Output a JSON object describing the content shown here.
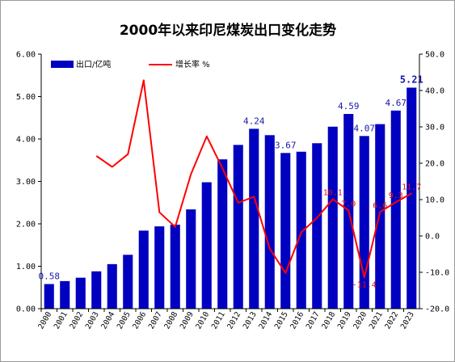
{
  "chart_data": {
    "type": "bar+line",
    "title": "2000年以来印尼煤炭出口变化走势",
    "categories": [
      "2000",
      "2001",
      "2002",
      "2003",
      "2004",
      "2005",
      "2006",
      "2007",
      "2008",
      "2009",
      "2010",
      "2011",
      "2012",
      "2013",
      "2014",
      "2015",
      "2016",
      "2017",
      "2018",
      "2019",
      "2020",
      "2021",
      "2022",
      "2023"
    ],
    "series": [
      {
        "name": "出口/亿吨",
        "type": "bar",
        "axis": "left",
        "color": "#0000c0",
        "values": [
          0.58,
          0.65,
          0.73,
          0.88,
          1.05,
          1.27,
          1.84,
          1.94,
          1.98,
          2.34,
          2.98,
          3.52,
          3.86,
          4.24,
          4.09,
          3.67,
          3.7,
          3.9,
          4.29,
          4.59,
          4.07,
          4.35,
          4.67,
          5.21
        ]
      },
      {
        "name": "增长率 %",
        "type": "line",
        "axis": "right",
        "color": "#ff0000",
        "values": [
          null,
          null,
          null,
          22,
          19,
          22.5,
          42.8,
          6.5,
          2.5,
          17,
          27.4,
          18.6,
          9.1,
          10.8,
          -3.5,
          -10.2,
          1,
          5,
          10.1,
          7.0,
          -11.4,
          6.6,
          9.3,
          11.7
        ]
      }
    ],
    "ylim_left": [
      0,
      6
    ],
    "yticks_left": [
      "0.00",
      "1.00",
      "2.00",
      "3.00",
      "4.00",
      "5.00",
      "6.00"
    ],
    "ylim_right": [
      -20,
      50
    ],
    "yticks_right": [
      "-20.0",
      "-10.0",
      "0.0",
      "10.0",
      "20.0",
      "30.0",
      "40.0",
      "50.0"
    ],
    "bar_labels": [
      {
        "index": 0,
        "text": "0.58",
        "bold": false
      },
      {
        "index": 13,
        "text": "4.24",
        "bold": false
      },
      {
        "index": 15,
        "text": "3.67",
        "bold": false
      },
      {
        "index": 19,
        "text": "4.59",
        "bold": false
      },
      {
        "index": 20,
        "text": "4.07",
        "bold": false
      },
      {
        "index": 22,
        "text": "4.67",
        "bold": false
      },
      {
        "index": 23,
        "text": "5.21",
        "bold": true
      }
    ],
    "line_labels": [
      {
        "index": 18,
        "text": "10.1"
      },
      {
        "index": 19,
        "text": "7.0"
      },
      {
        "index": 20,
        "text": "-11.4"
      },
      {
        "index": 21,
        "text": "6.6"
      },
      {
        "index": 22,
        "text": "9.3"
      },
      {
        "index": 23,
        "text": "11.7"
      }
    ],
    "legend_position": "top-left",
    "grid": false
  }
}
